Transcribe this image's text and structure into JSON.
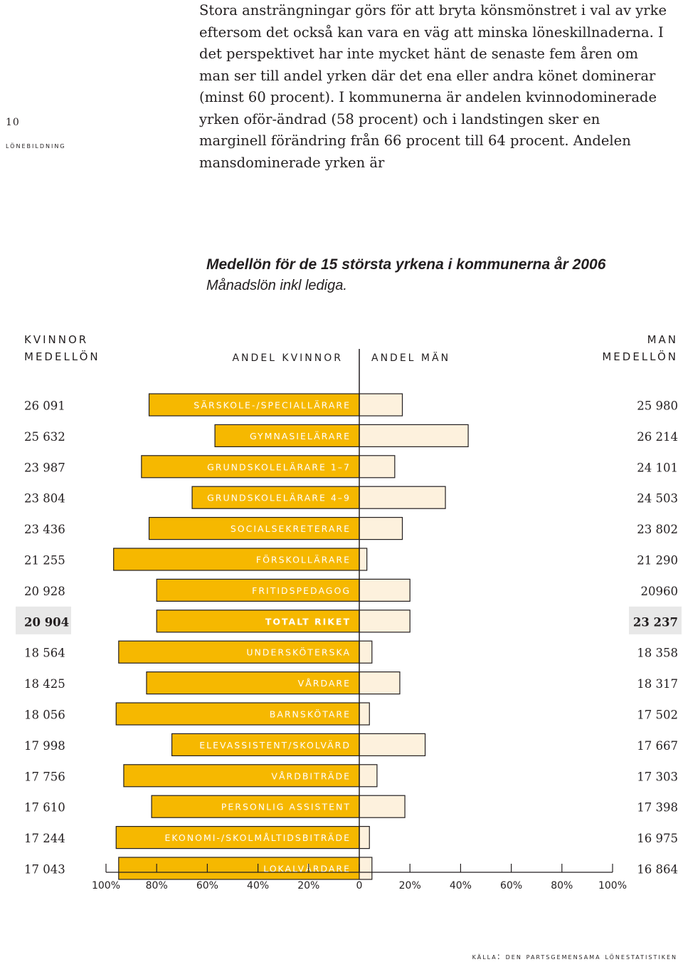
{
  "page": {
    "number": "10",
    "section": "lönebildning"
  },
  "intro_text": "Stora ansträngningar görs för att bryta könsmönstret i val av yrke eftersom det också kan vara en väg att minska löneskillnaderna. I det perspektivet har inte mycket hänt de senaste fem åren om man ser till andel yrken där det ena eller andra könet dominerar (minst 60 procent). I kommunerna är andelen kvinnodominerade yrken oför-ändrad (58 procent) och i landstingen sker en marginell förändring från 66 procent till 64 procent. Andelen mansdominerade yrken är",
  "source": "källa: den partsgemensama lönestatistiken",
  "colors": {
    "bar_women": "#f6b800",
    "bar_men": "#fdf1dd",
    "bar_border": "#231f20",
    "highlight_bg": "#e8e8e8"
  },
  "chart_data": {
    "type": "bar",
    "title": "Medellön för de 15 största yrkena i kommunerna år 2006",
    "subtitle": "Månadslön inkl lediga.",
    "left_header": [
      "KVINNOR",
      "MEDELLÖN"
    ],
    "right_header": [
      "MAN",
      "MEDELLÖN"
    ],
    "center_left_label": "ANDEL KVINNOR",
    "center_right_label": "ANDEL MÄN",
    "x_tick_labels": [
      "100%",
      "80%",
      "60%",
      "40%",
      "20%",
      "0",
      "20%",
      "40%",
      "60%",
      "80%",
      "100%"
    ],
    "xlim": [
      -100,
      100
    ],
    "categories": [
      "särskole-/speciallärare",
      "gymnasielärare",
      "grundskolelärare 1–7",
      "grundskolelärare 4–9",
      "socialsekreterare",
      "förskollärare",
      "fritidspedagog",
      "totalt riket",
      "undersköterska",
      "vårdare",
      "barnskötare",
      "elevassistent/skolvärd",
      "vårdbiträde",
      "personlig assistent",
      "ekonomi-/skolmåltidsbiträde",
      "lokalvårdare"
    ],
    "highlight_index": 7,
    "series": [
      {
        "name": "Andel kvinnor",
        "values": [
          83,
          57,
          86,
          66,
          83,
          97,
          80,
          80,
          95,
          84,
          96,
          74,
          93,
          82,
          96,
          95
        ]
      },
      {
        "name": "Andel män",
        "values": [
          17,
          43,
          14,
          34,
          17,
          3,
          20,
          20,
          5,
          16,
          4,
          26,
          7,
          18,
          4,
          5
        ]
      }
    ],
    "women_salary": [
      "26 091",
      "25 632",
      "23 987",
      "23 804",
      "23 436",
      "21 255",
      "20 928",
      "20 904",
      "18 564",
      "18 425",
      "18 056",
      "17 998",
      "17 756",
      "17 610",
      "17 244",
      "17 043"
    ],
    "men_salary": [
      "25 980",
      "26 214",
      "24 101",
      "24 503",
      "23 802",
      "21 290",
      "20960",
      "23 237",
      "18 358",
      "18 317",
      "17 502",
      "17 667",
      "17 303",
      "17 398",
      "16 975",
      "16 864"
    ]
  }
}
